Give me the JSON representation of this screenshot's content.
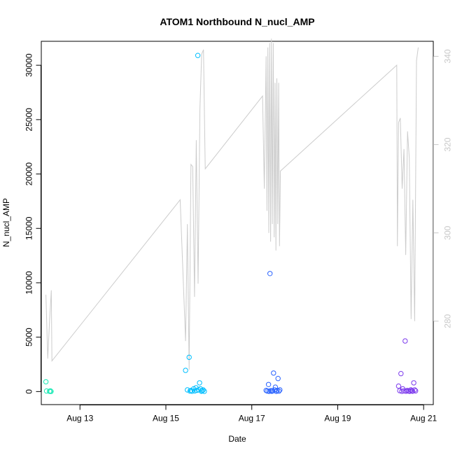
{
  "chart_data": {
    "type": "scatter",
    "title": "ATOM1 Northbound N_nucl_AMP",
    "xlabel": "Date",
    "ylabel": "N_nucl_AMP",
    "x_unit": "date",
    "x_start": "2016-08-12",
    "xlim": [
      "2016-08-12T02:24",
      "2016-08-21T05:24"
    ],
    "x_ticks": [
      {
        "date": "2016-08-13",
        "label": "Aug 13"
      },
      {
        "date": "2016-08-15",
        "label": "Aug 15"
      },
      {
        "date": "2016-08-17",
        "label": "Aug 17"
      },
      {
        "date": "2016-08-19",
        "label": "Aug 19"
      },
      {
        "date": "2016-08-21",
        "label": "Aug 21"
      }
    ],
    "ylim": [
      -1200,
      32200
    ],
    "y_ticks": [
      0,
      5000,
      10000,
      15000,
      20000,
      25000,
      30000
    ],
    "y2lim": [
      261.1,
      343.4
    ],
    "y2_ticks": [
      280,
      300,
      320,
      340
    ],
    "grid": false,
    "legend": "none",
    "series": [
      {
        "kind": "points",
        "color": "#1de9b6",
        "points": [
          [
            "2016-08-12T05:00",
            900
          ],
          [
            "2016-08-12T05:20",
            50
          ],
          [
            "2016-08-12T07:00",
            20
          ],
          [
            "2016-08-12T07:30",
            60
          ],
          [
            "2016-08-12T07:50",
            10
          ]
        ]
      },
      {
        "kind": "points",
        "color": "#00bfff",
        "points": [
          [
            "2016-08-15T11:00",
            1950
          ],
          [
            "2016-08-15T12:00",
            150
          ],
          [
            "2016-08-15T13:00",
            3150
          ],
          [
            "2016-08-15T13:30",
            50
          ],
          [
            "2016-08-15T14:00",
            100
          ],
          [
            "2016-08-15T14:40",
            30
          ],
          [
            "2016-08-15T15:30",
            250
          ],
          [
            "2016-08-15T16:10",
            60
          ],
          [
            "2016-08-15T16:50",
            350
          ],
          [
            "2016-08-15T17:20",
            120
          ],
          [
            "2016-08-15T17:50",
            30900
          ],
          [
            "2016-08-15T18:20",
            150
          ],
          [
            "2016-08-15T18:50",
            800
          ],
          [
            "2016-08-15T19:20",
            250
          ],
          [
            "2016-08-15T19:50",
            30
          ],
          [
            "2016-08-15T20:20",
            80
          ],
          [
            "2016-08-15T20:50",
            150
          ],
          [
            "2016-08-15T21:30",
            20
          ]
        ]
      },
      {
        "kind": "points",
        "color": "#2962ff",
        "points": [
          [
            "2016-08-17T08:00",
            100
          ],
          [
            "2016-08-17T08:40",
            50
          ],
          [
            "2016-08-17T09:20",
            650
          ],
          [
            "2016-08-17T09:40",
            20
          ],
          [
            "2016-08-17T10:10",
            10850
          ],
          [
            "2016-08-17T10:40",
            80
          ],
          [
            "2016-08-17T11:10",
            30
          ],
          [
            "2016-08-17T11:40",
            60
          ],
          [
            "2016-08-17T12:10",
            1700
          ],
          [
            "2016-08-17T12:40",
            150
          ],
          [
            "2016-08-17T13:10",
            400
          ],
          [
            "2016-08-17T13:40",
            20
          ],
          [
            "2016-08-17T14:10",
            100
          ],
          [
            "2016-08-17T14:40",
            1200
          ],
          [
            "2016-08-17T15:10",
            40
          ],
          [
            "2016-08-17T15:40",
            150
          ]
        ]
      },
      {
        "kind": "points",
        "color": "#7c3aed",
        "points": [
          [
            "2016-08-20T10:00",
            500
          ],
          [
            "2016-08-20T10:40",
            80
          ],
          [
            "2016-08-20T11:20",
            1650
          ],
          [
            "2016-08-20T11:50",
            20
          ],
          [
            "2016-08-20T12:20",
            250
          ],
          [
            "2016-08-20T13:00",
            60
          ],
          [
            "2016-08-20T13:40",
            4650
          ],
          [
            "2016-08-20T14:10",
            30
          ],
          [
            "2016-08-20T14:50",
            100
          ],
          [
            "2016-08-20T15:30",
            50
          ],
          [
            "2016-08-20T16:10",
            20
          ],
          [
            "2016-08-20T16:50",
            150
          ],
          [
            "2016-08-20T17:20",
            80
          ],
          [
            "2016-08-20T17:50",
            30
          ],
          [
            "2016-08-20T18:30",
            800
          ],
          [
            "2016-08-20T19:00",
            150
          ],
          [
            "2016-08-20T19:30",
            60
          ]
        ]
      },
      {
        "kind": "line",
        "axis": "right",
        "color": "#cccccc",
        "points": [
          [
            "2016-08-12T05:00",
            286.0
          ],
          [
            "2016-08-12T06:00",
            271.5
          ],
          [
            "2016-08-12T07:00",
            280.0
          ],
          [
            "2016-08-12T08:00",
            287.0
          ],
          [
            "2016-08-12T08:20",
            271.0
          ],
          [
            "2016-08-15T08:00",
            307.5
          ],
          [
            "2016-08-15T11:00",
            275.5
          ],
          [
            "2016-08-15T12:00",
            302.0
          ],
          [
            "2016-08-15T13:00",
            269.0
          ],
          [
            "2016-08-15T14:00",
            315.5
          ],
          [
            "2016-08-15T15:00",
            315.0
          ],
          [
            "2016-08-15T16:00",
            285.5
          ],
          [
            "2016-08-15T17:00",
            321.0
          ],
          [
            "2016-08-15T18:00",
            288.5
          ],
          [
            "2016-08-15T19:00",
            328.0
          ],
          [
            "2016-08-15T20:00",
            340.5
          ],
          [
            "2016-08-15T21:00",
            341.5
          ],
          [
            "2016-08-15T22:00",
            314.5
          ],
          [
            "2016-08-17T06:00",
            331.0
          ],
          [
            "2016-08-17T07:00",
            310.0
          ],
          [
            "2016-08-17T08:00",
            340.0
          ],
          [
            "2016-08-17T08:30",
            305.0
          ],
          [
            "2016-08-17T09:00",
            342.0
          ],
          [
            "2016-08-17T09:30",
            300.0
          ],
          [
            "2016-08-17T10:00",
            343.0
          ],
          [
            "2016-08-17T10:30",
            298.0
          ],
          [
            "2016-08-17T11:00",
            344.0
          ],
          [
            "2016-08-17T11:30",
            302.0
          ],
          [
            "2016-08-17T12:00",
            343.0
          ],
          [
            "2016-08-17T12:30",
            299.0
          ],
          [
            "2016-08-17T13:00",
            334.0
          ],
          [
            "2016-08-17T13:30",
            296.0
          ],
          [
            "2016-08-17T14:00",
            335.0
          ],
          [
            "2016-08-17T14:30",
            302.0
          ],
          [
            "2016-08-17T15:00",
            334.0
          ],
          [
            "2016-08-17T15:30",
            297.0
          ],
          [
            "2016-08-17T16:00",
            314.0
          ],
          [
            "2016-08-20T09:00",
            338.0
          ],
          [
            "2016-08-20T09:20",
            297.0
          ],
          [
            "2016-08-20T10:00",
            325.0
          ],
          [
            "2016-08-20T11:00",
            326.0
          ],
          [
            "2016-08-20T12:00",
            310.0
          ],
          [
            "2016-08-20T13:00",
            319.0
          ],
          [
            "2016-08-20T14:00",
            295.0
          ],
          [
            "2016-08-20T15:00",
            323.0
          ],
          [
            "2016-08-20T16:00",
            317.0
          ],
          [
            "2016-08-20T17:00",
            280.5
          ],
          [
            "2016-08-20T18:00",
            307.5
          ],
          [
            "2016-08-20T19:00",
            280.0
          ],
          [
            "2016-08-20T20:00",
            339.0
          ],
          [
            "2016-08-20T21:00",
            342.0
          ]
        ]
      }
    ]
  }
}
